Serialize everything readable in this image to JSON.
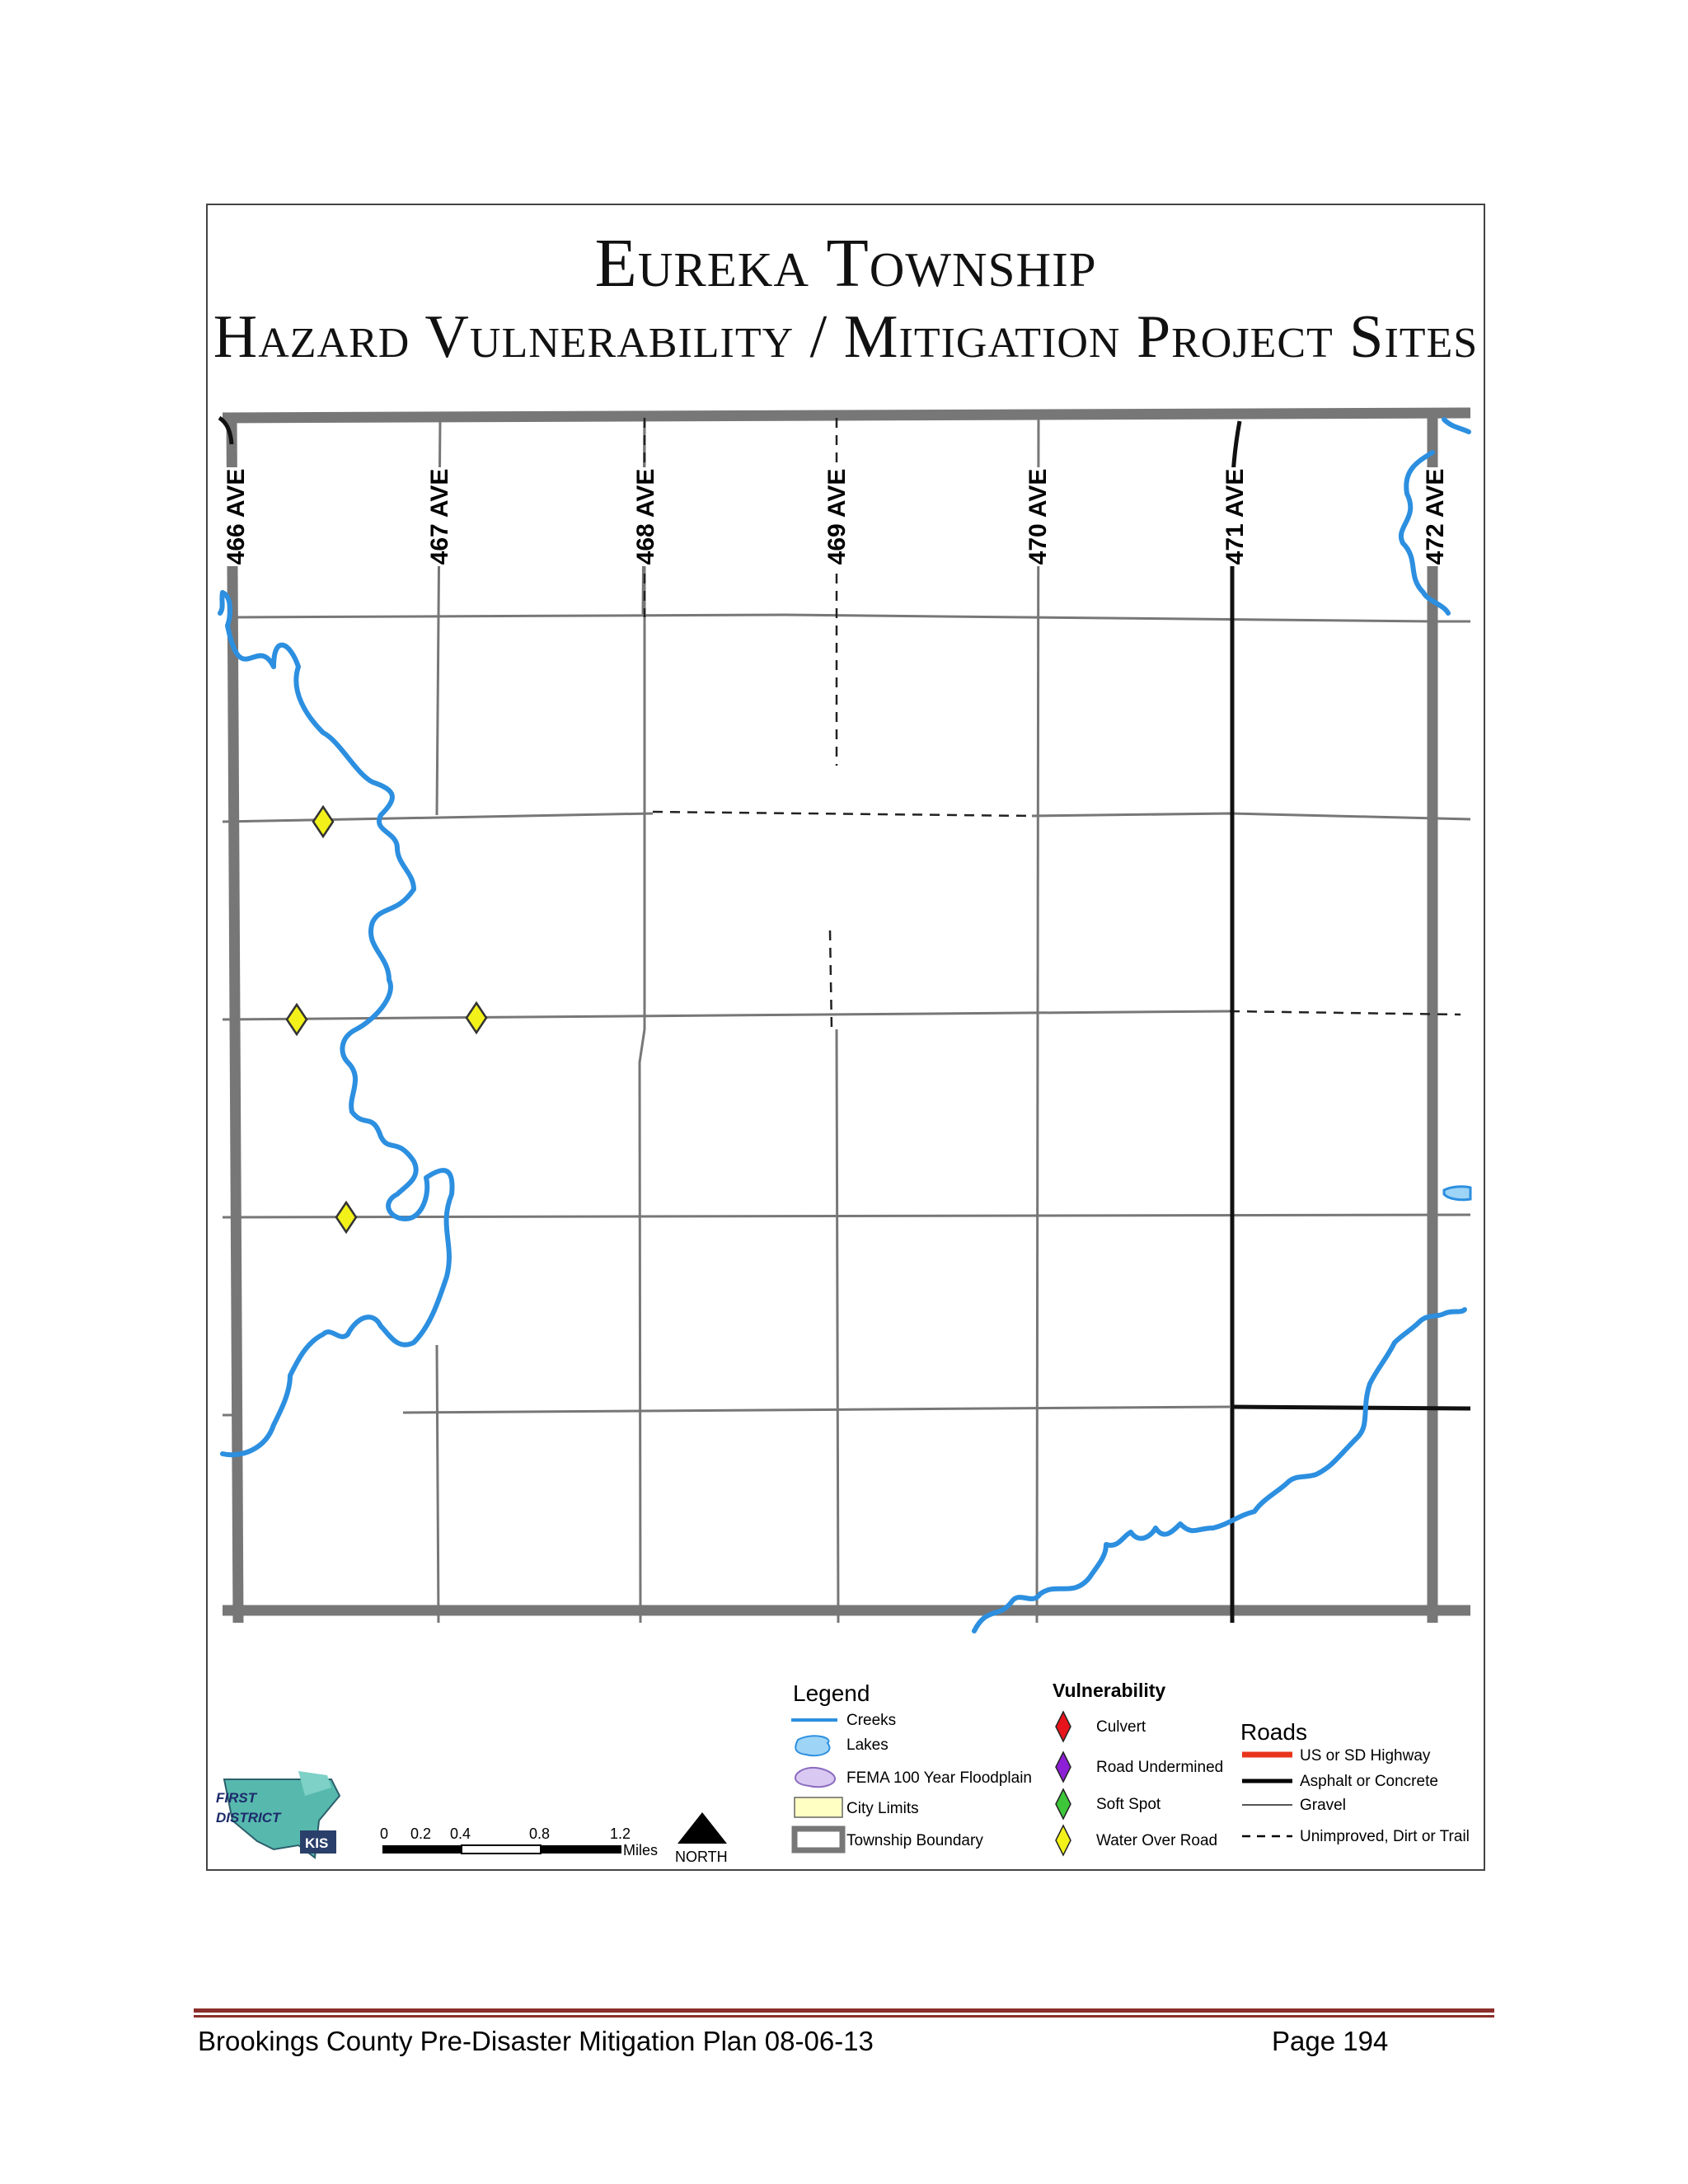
{
  "title": {
    "line1": "Eureka Township",
    "line2": "Hazard Vulnerability /  Mitigation Project Sites"
  },
  "avenues": [
    "466 AVE",
    "467 AVE",
    "468 AVE",
    "469 AVE",
    "470 AVE",
    "471 AVE",
    "472 AVE"
  ],
  "legend": {
    "heading": "Legend",
    "items": [
      {
        "label": "Creeks",
        "icon": "creek-line-icon"
      },
      {
        "label": "Lakes",
        "icon": "lake-icon"
      },
      {
        "label": "FEMA 100 Year Floodplain",
        "icon": "floodplain-icon"
      },
      {
        "label": "City Limits",
        "icon": "city-limits-icon"
      },
      {
        "label": "Township Boundary",
        "icon": "township-boundary-icon"
      }
    ]
  },
  "vulnerability": {
    "heading": "Vulnerability",
    "items": [
      {
        "label": "Culvert",
        "color": "#e8141b"
      },
      {
        "label": "Road Undermined",
        "color": "#8d1fd6"
      },
      {
        "label": "Soft Spot",
        "color": "#3ec63a"
      },
      {
        "label": "Water Over Road",
        "color": "#f2f21a"
      }
    ]
  },
  "roads": {
    "heading": "Roads",
    "items": [
      {
        "label": "US or SD Highway",
        "color": "#e8341b"
      },
      {
        "label": "Asphalt or Concrete",
        "color": "#000000"
      },
      {
        "label": "Gravel",
        "color": "#555555"
      },
      {
        "label": "Unimproved, Dirt or Trail",
        "color": "#000000"
      }
    ]
  },
  "scale": {
    "ticks": [
      "0",
      "0.2",
      "0.4",
      "0.8",
      "1.2"
    ],
    "unit": "Miles",
    "north": "NORTH"
  },
  "logo": {
    "line1": "FIRST",
    "line2": "DISTRICT",
    "badge": "KIS"
  },
  "footer": {
    "left": "Brookings County Pre-Disaster Mitigation Plan 08-06-13",
    "right": "Page 194"
  }
}
